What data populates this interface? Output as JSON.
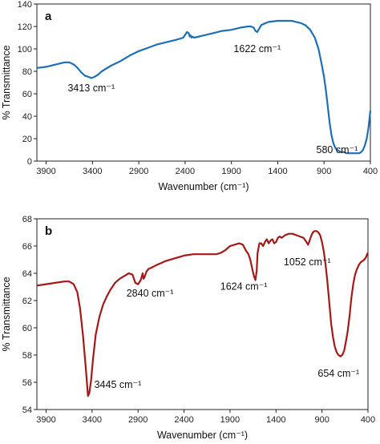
{
  "chart_data": [
    {
      "panel": "a",
      "type": "line",
      "xlabel": "Wavenumber (cm⁻¹)",
      "ylabel": "% Transmittance",
      "xlim": [
        4000,
        400
      ],
      "ylim": [
        0,
        140
      ],
      "x_ticks": [
        3900,
        3400,
        2900,
        2400,
        1900,
        1400,
        900,
        400
      ],
      "x_tick_labels": [
        "3900",
        "3400",
        "2900",
        "2400",
        "1900",
        "1400",
        "900",
        "400"
      ],
      "y_ticks": [
        0,
        20,
        40,
        60,
        80,
        100,
        120,
        140
      ],
      "y_tick_labels": [
        "0",
        "20",
        "40",
        "60",
        "80",
        "100",
        "120",
        "140"
      ],
      "color": "#1f6fb5",
      "grid": false,
      "series": [
        {
          "x": [
            4000,
            3900,
            3800,
            3700,
            3650,
            3600,
            3560,
            3520,
            3480,
            3440,
            3413,
            3380,
            3340,
            3300,
            3200,
            3100,
            3000,
            2900,
            2800,
            2700,
            2600,
            2500,
            2420,
            2380,
            2360,
            2350,
            2340,
            2330,
            2320,
            2300,
            2200,
            2100,
            2000,
            1900,
            1800,
            1720,
            1690,
            1660,
            1640,
            1622,
            1600,
            1580,
            1560,
            1500,
            1400,
            1300,
            1250,
            1200,
            1150,
            1100,
            1050,
            1000,
            960,
            930,
            900,
            880,
            860,
            840,
            820,
            800,
            780,
            760,
            740,
            720,
            700,
            680,
            660,
            640,
            600,
            560,
            520,
            500,
            480,
            460,
            440,
            420,
            400
          ],
          "y": [
            83,
            84,
            86,
            88,
            88,
            86,
            83,
            79,
            76,
            75,
            74,
            75,
            77,
            80,
            85,
            89,
            94,
            98,
            101,
            104,
            106,
            108,
            110,
            115,
            114,
            111,
            112,
            110,
            111,
            110,
            112,
            114,
            116,
            117,
            119,
            120,
            120,
            119,
            116,
            115,
            118,
            121,
            122,
            124,
            125,
            125,
            125,
            124,
            123,
            121,
            117,
            110,
            100,
            88,
            75,
            63,
            49,
            34,
            23,
            16,
            12,
            10,
            9,
            8,
            8,
            8,
            7,
            7,
            7,
            7,
            7,
            8,
            10,
            14,
            20,
            30,
            45
          ]
        }
      ],
      "annotations": [
        {
          "text": "3413 cm⁻¹",
          "x": 3413,
          "y": 62
        },
        {
          "text": "1622 cm⁻¹",
          "x": 1622,
          "y": 97
        },
        {
          "text": "580 cm⁻¹",
          "x": 760,
          "y": 7
        }
      ]
    },
    {
      "panel": "b",
      "type": "line",
      "xlabel": "Wavenumber (cm⁻¹)",
      "ylabel": "% Transmittance",
      "xlim": [
        4000,
        400
      ],
      "ylim": [
        54,
        68
      ],
      "x_ticks": [
        3900,
        3400,
        2900,
        2400,
        1900,
        1400,
        900,
        400
      ],
      "x_tick_labels": [
        "3900",
        "3400",
        "2900",
        "2400",
        "1900",
        "1400",
        "900",
        "400"
      ],
      "y_ticks": [
        54,
        56,
        58,
        60,
        62,
        64,
        66,
        68
      ],
      "y_tick_labels": [
        "54",
        "56",
        "58",
        "60",
        "62",
        "64",
        "66",
        "68"
      ],
      "color": "#a31919",
      "grid": false,
      "series": [
        {
          "x": [
            4000,
            3900,
            3800,
            3700,
            3650,
            3600,
            3560,
            3530,
            3500,
            3470,
            3450,
            3445,
            3430,
            3410,
            3390,
            3360,
            3320,
            3280,
            3240,
            3200,
            3150,
            3100,
            3050,
            3000,
            2960,
            2930,
            2900,
            2870,
            2850,
            2840,
            2830,
            2810,
            2790,
            2760,
            2700,
            2600,
            2500,
            2400,
            2300,
            2200,
            2100,
            2050,
            2000,
            1950,
            1900,
            1850,
            1800,
            1760,
            1730,
            1700,
            1680,
            1660,
            1640,
            1624,
            1610,
            1600,
            1580,
            1560,
            1540,
            1520,
            1500,
            1480,
            1460,
            1440,
            1420,
            1400,
            1380,
            1360,
            1340,
            1300,
            1260,
            1220,
            1180,
            1140,
            1100,
            1080,
            1060,
            1052,
            1040,
            1020,
            1000,
            980,
            960,
            940,
            920,
            900,
            880,
            860,
            840,
            820,
            800,
            780,
            760,
            740,
            720,
            700,
            680,
            660,
            654,
            640,
            620,
            600,
            580,
            560,
            540,
            520,
            500,
            480,
            460,
            440,
            420,
            410,
            400
          ],
          "y": [
            63.1,
            63.2,
            63.3,
            63.4,
            63.4,
            63.2,
            62.6,
            61.4,
            59.5,
            57.2,
            55.5,
            55.0,
            55.2,
            56.2,
            57.7,
            59.5,
            60.8,
            61.7,
            62.3,
            62.8,
            63.3,
            63.6,
            63.8,
            64.0,
            63.9,
            63.3,
            63.2,
            63.5,
            64.0,
            63.6,
            63.7,
            64.1,
            64.3,
            64.4,
            64.6,
            64.9,
            65.1,
            65.3,
            65.4,
            65.4,
            65.4,
            65.4,
            65.5,
            65.7,
            66.0,
            66.1,
            66.2,
            66.1,
            65.7,
            65.4,
            65.0,
            64.4,
            63.8,
            63.5,
            64.2,
            65.5,
            66.2,
            66.2,
            66.0,
            66.3,
            66.5,
            66.2,
            66.4,
            66.5,
            66.2,
            66.3,
            66.6,
            66.7,
            66.6,
            66.8,
            66.9,
            66.9,
            66.8,
            66.7,
            66.6,
            66.4,
            66.2,
            66.1,
            66.3,
            66.7,
            67.0,
            67.1,
            67.1,
            67.0,
            66.8,
            66.3,
            65.6,
            64.6,
            63.3,
            61.8,
            60.3,
            59.3,
            58.6,
            58.2,
            58.0,
            57.9,
            58.0,
            58.3,
            58.5,
            59.0,
            59.8,
            60.9,
            62.2,
            63.2,
            63.9,
            64.3,
            64.6,
            64.8,
            64.9,
            65.0,
            65.2,
            65.4,
            65.5
          ]
        }
      ],
      "annotations": [
        {
          "text": "3445 cm⁻¹",
          "x": 3120,
          "y": 55.6
        },
        {
          "text": "2840 cm⁻¹",
          "x": 2770,
          "y": 62.3
        },
        {
          "text": "1624 cm⁻¹",
          "x": 1750,
          "y": 62.8
        },
        {
          "text": "1052 cm⁻¹",
          "x": 1060,
          "y": 64.6
        },
        {
          "text": "654 cm⁻¹",
          "x": 720,
          "y": 56.4
        }
      ]
    }
  ]
}
